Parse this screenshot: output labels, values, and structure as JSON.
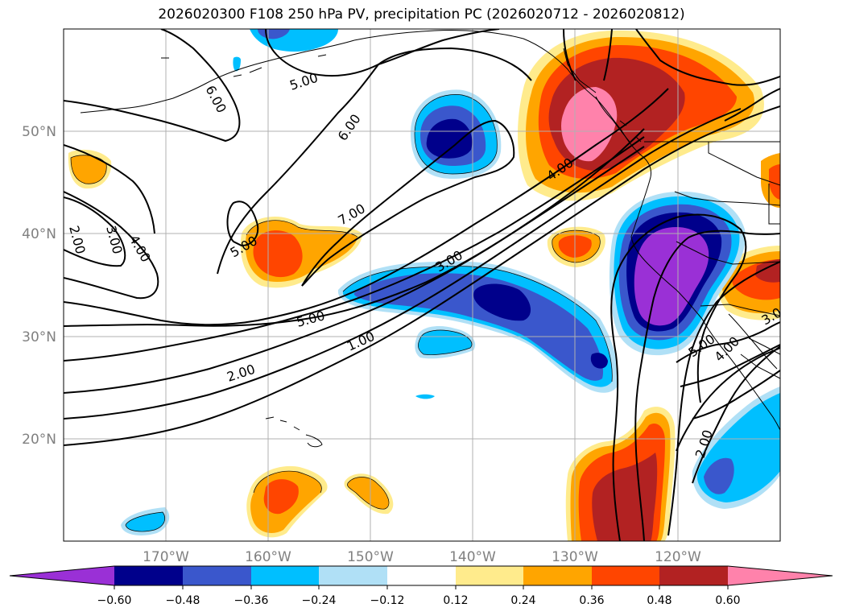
{
  "title": "2026020300 F108 250 hPa PV, precipitation PC (2026020712 - 2026020812)",
  "lat_labels": [
    "50°N",
    "40°N",
    "30°N",
    "20°N"
  ],
  "lon_labels": [
    "170°W",
    "160°W",
    "150°W",
    "140°W",
    "130°W",
    "120°W"
  ],
  "contour_labels": [
    "6.00",
    "5.00",
    "6.00",
    "7.00",
    "5.00",
    "2.00",
    "3.00",
    "4.00",
    "4.00",
    "3.00",
    "5.00",
    "1.00",
    "2.00",
    "5.00",
    "4.00",
    "2.00",
    "3.00"
  ],
  "colorbar": {
    "ticks": [
      "−0.60",
      "−0.48",
      "−0.36",
      "−0.24",
      "−0.12",
      "0.12",
      "0.24",
      "0.36",
      "0.48",
      "0.60"
    ],
    "colors": [
      "#9a30d6",
      "#00008b",
      "#3a57cc",
      "#00bfff",
      "#b0e0f6",
      "#ffffff",
      "#ffeb8c",
      "#ffa500",
      "#ff4500",
      "#b22222",
      "#ff82ab"
    ]
  },
  "colors": {
    "frame": "#000000",
    "grid": "#b0b0b0",
    "coast": "#000000"
  }
}
